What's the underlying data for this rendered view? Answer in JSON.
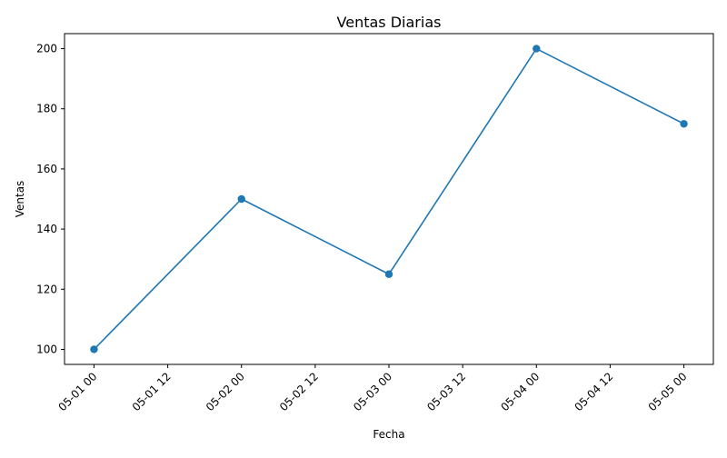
{
  "chart_data": {
    "type": "line",
    "title": "Ventas Diarias",
    "xlabel": "Fecha",
    "ylabel": "Ventas",
    "x_type": "datetime",
    "x": [
      "2024-05-01 00:00",
      "2024-05-02 00:00",
      "2024-05-03 00:00",
      "2024-05-04 00:00",
      "2024-05-05 00:00"
    ],
    "series": [
      {
        "values": [
          100,
          150,
          125,
          200,
          175
        ],
        "color": "#1f77b4",
        "marker": "circle"
      }
    ],
    "x_ticks": [
      "05-01 00",
      "05-01 12",
      "05-02 00",
      "05-02 12",
      "05-03 00",
      "05-03 12",
      "05-04 00",
      "05-04 12",
      "05-05 00"
    ],
    "x_tick_rotation": 45,
    "y_ticks": [
      100,
      120,
      140,
      160,
      180,
      200
    ],
    "xlim": [
      "2024-04-30 19:12",
      "2024-05-05 04:48"
    ],
    "ylim": [
      95,
      205
    ],
    "grid": false,
    "legend": "none"
  }
}
